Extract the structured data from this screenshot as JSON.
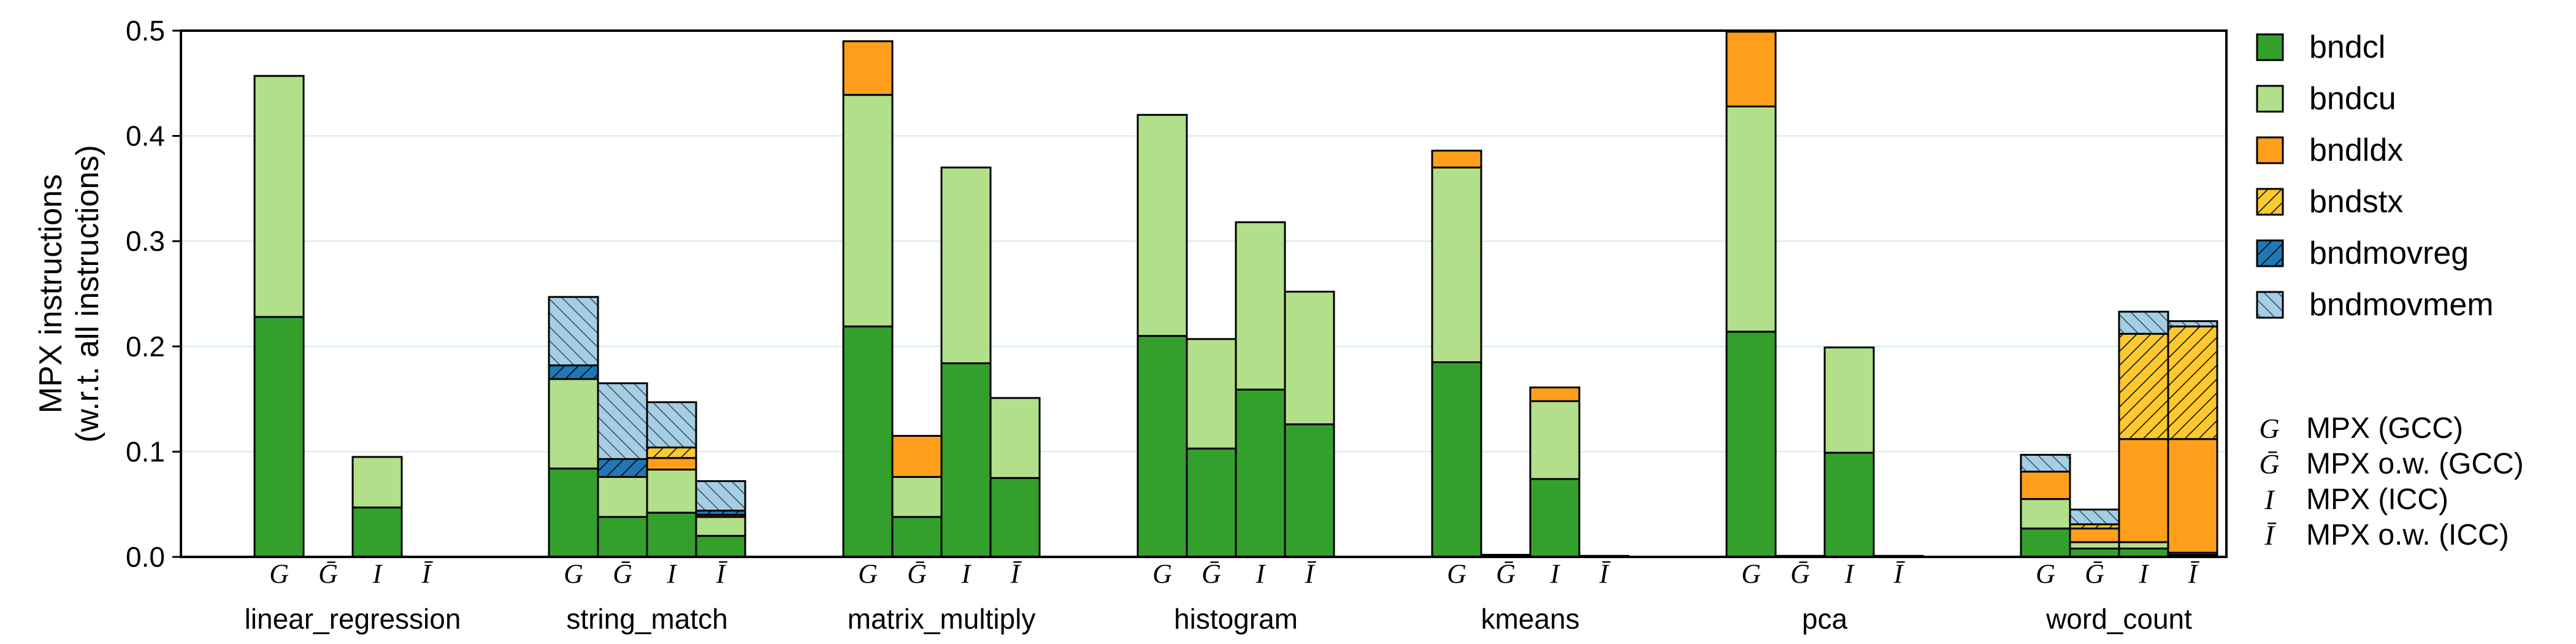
{
  "chart_data": {
    "type": "bar",
    "stacked": true,
    "ylabel": [
      "MPX instructions",
      "(w.r.t. all instructions)"
    ],
    "ylim": [
      0,
      0.5
    ],
    "yticks": [
      "0.0",
      "0.1",
      "0.2",
      "0.3",
      "0.4",
      "0.5"
    ],
    "grid": true,
    "legend_position": "right",
    "conditions": [
      "G",
      "Ḡ",
      "I",
      "Ī"
    ],
    "condition_key": [
      {
        "symbol": "G",
        "label": "MPX (GCC)"
      },
      {
        "symbol": "Ḡ",
        "label": "MPX o.w. (GCC)"
      },
      {
        "symbol": "I",
        "label": "MPX (ICC)"
      },
      {
        "symbol": "Ī",
        "label": "MPX o.w. (ICC)"
      }
    ],
    "series": [
      {
        "name": "bndcl",
        "color": "#33a02c",
        "pattern": "solid"
      },
      {
        "name": "bndcu",
        "color": "#b2df8a",
        "pattern": "solid"
      },
      {
        "name": "bndldx",
        "color": "#ff9f1c",
        "pattern": "solid"
      },
      {
        "name": "bndstx",
        "color": "#ffc92e",
        "pattern": "hatch"
      },
      {
        "name": "bndmovreg",
        "color": "#1f78b4",
        "pattern": "hatch"
      },
      {
        "name": "bndmovmem",
        "color": "#a6cee3",
        "pattern": "hatch"
      }
    ],
    "groups": [
      {
        "name": "linear_regression",
        "bars": [
          [
            0.228,
            0.229,
            0,
            0,
            0,
            0
          ],
          [
            0,
            0,
            0,
            0,
            0,
            0
          ],
          [
            0.047,
            0.048,
            0,
            0,
            0,
            0
          ],
          [
            0,
            0,
            0,
            0,
            0,
            0
          ]
        ]
      },
      {
        "name": "string_match",
        "bars": [
          [
            0.084,
            0.085,
            0,
            0,
            0.013,
            0.065
          ],
          [
            0.038,
            0.038,
            0,
            0,
            0.017,
            0.072
          ],
          [
            0.042,
            0.041,
            0.011,
            0.01,
            0,
            0.043
          ],
          [
            0.02,
            0.018,
            0.002,
            0,
            0.004,
            0.028
          ]
        ]
      },
      {
        "name": "matrix_multiply",
        "bars": [
          [
            0.219,
            0.22,
            0.051,
            0,
            0,
            0
          ],
          [
            0.038,
            0.038,
            0.039,
            0,
            0,
            0
          ],
          [
            0.184,
            0.186,
            0,
            0,
            0,
            0
          ],
          [
            0.075,
            0.076,
            0,
            0,
            0,
            0
          ]
        ]
      },
      {
        "name": "histogram",
        "bars": [
          [
            0.21,
            0.21,
            0,
            0,
            0,
            0
          ],
          [
            0.103,
            0.104,
            0,
            0,
            0,
            0
          ],
          [
            0.159,
            0.159,
            0,
            0,
            0,
            0
          ],
          [
            0.126,
            0.126,
            0,
            0,
            0,
            0
          ]
        ]
      },
      {
        "name": "kmeans",
        "bars": [
          [
            0.185,
            0.185,
            0.016,
            0,
            0,
            0
          ],
          [
            0.002,
            0,
            0,
            0,
            0,
            0
          ],
          [
            0.074,
            0.074,
            0.013,
            0,
            0,
            0
          ],
          [
            0.001,
            0,
            0,
            0,
            0,
            0
          ]
        ]
      },
      {
        "name": "pca",
        "bars": [
          [
            0.214,
            0.214,
            0.071,
            0,
            0,
            0
          ],
          [
            0.001,
            0,
            0,
            0,
            0,
            0
          ],
          [
            0.099,
            0.1,
            0,
            0,
            0,
            0
          ],
          [
            0.001,
            0,
            0,
            0,
            0,
            0
          ]
        ]
      },
      {
        "name": "word_count",
        "bars": [
          [
            0.027,
            0.028,
            0.026,
            0,
            0,
            0.016
          ],
          [
            0.008,
            0.006,
            0.013,
            0.004,
            0,
            0.014
          ],
          [
            0.008,
            0.006,
            0.098,
            0.1,
            0,
            0.021
          ],
          [
            0.002,
            0.002,
            0.108,
            0.107,
            0,
            0.005
          ]
        ]
      }
    ]
  }
}
